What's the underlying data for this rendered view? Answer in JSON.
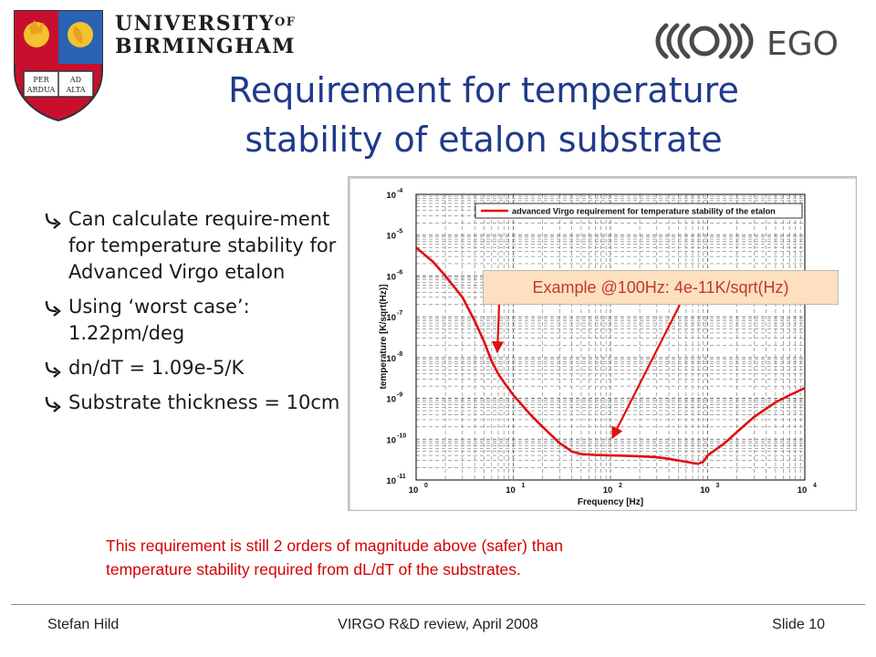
{
  "header": {
    "university_line1": "UNIVERSITY",
    "university_of": "OF",
    "university_line2": "BIRMINGHAM",
    "crest_motto_left": "PER ARDUA",
    "crest_motto_right": "AD ALTA",
    "ego_logo_text": "EGO",
    "crest_colors": {
      "red": "#c8102e",
      "blue": "#2a63b3",
      "gold": "#f2c230"
    }
  },
  "title": {
    "line1": "Requirement for temperature",
    "line2": "stability of etalon substrate",
    "color": "#1f3a8a"
  },
  "bullets": [
    {
      "text": "Can calculate require-ment for temperature stability for Advanced Virgo etalon",
      "icon": "arrow-icon"
    },
    {
      "text": "Using ‘worst case’: 1.22pm/deg",
      "icon": "arrow-icon"
    },
    {
      "text": "dn/dT = 1.09e-5/K",
      "icon": "arrow-icon"
    },
    {
      "text": "Substrate thickness = 10cm",
      "icon": "arrow-icon"
    }
  ],
  "callout": {
    "text": "Example @100Hz: 4e-11K/sqrt(Hz)",
    "color": "#c0392b"
  },
  "note": {
    "line1": "This requirement is still 2 orders of magnitude above (safer) than",
    "line2": "temperature stability required from dL/dT of the substrates.",
    "color": "#d40000"
  },
  "footer": {
    "author": "Stefan Hild",
    "event": "VIRGO R&D review, April 2008",
    "slide": "Slide 10"
  },
  "chart_data": {
    "type": "line",
    "title": "",
    "xlabel": "Frequency [Hz]",
    "ylabel": "temperature [K/sqrt(Hz)]",
    "x_scale": "log",
    "y_scale": "log",
    "xlim": [
      1,
      10000
    ],
    "ylim": [
      1e-11,
      0.0001
    ],
    "x_tick_bases": [
      "10",
      "10",
      "10",
      "10",
      "10"
    ],
    "x_tick_exps": [
      "0",
      "1",
      "2",
      "3",
      "4"
    ],
    "y_tick_bases": [
      "10",
      "10",
      "10",
      "10",
      "10",
      "10",
      "10",
      "10"
    ],
    "y_tick_exps": [
      "-11",
      "-10",
      "-9",
      "-8",
      "-7",
      "-6",
      "-5",
      "-4"
    ],
    "grid": true,
    "legend_position": "top-right",
    "series": [
      {
        "name": "advanced Virgo requirement for temperature stability of the etalon",
        "color": "#e01010",
        "x": [
          1,
          1.5,
          2,
          3,
          4,
          5,
          6,
          7,
          8,
          10,
          15,
          20,
          30,
          40,
          50,
          70,
          100,
          150,
          200,
          300,
          400,
          500,
          600,
          700,
          800,
          900,
          1000,
          1500,
          2000,
          3000,
          5000,
          7000,
          10000
        ],
        "y": [
          5e-06,
          2.2e-06,
          1e-06,
          3e-07,
          8e-08,
          2.5e-08,
          8e-09,
          4e-09,
          2.5e-09,
          1.2e-09,
          4e-10,
          2e-10,
          8e-11,
          5e-11,
          4.3e-11,
          4.1e-11,
          4e-11,
          3.9e-11,
          3.8e-11,
          3.6e-11,
          3.3e-11,
          3e-11,
          2.8e-11,
          2.6e-11,
          2.5e-11,
          2.8e-11,
          4e-11,
          8e-11,
          1.5e-10,
          3.5e-10,
          8e-10,
          1.2e-09,
          1.8e-09
        ]
      }
    ]
  }
}
